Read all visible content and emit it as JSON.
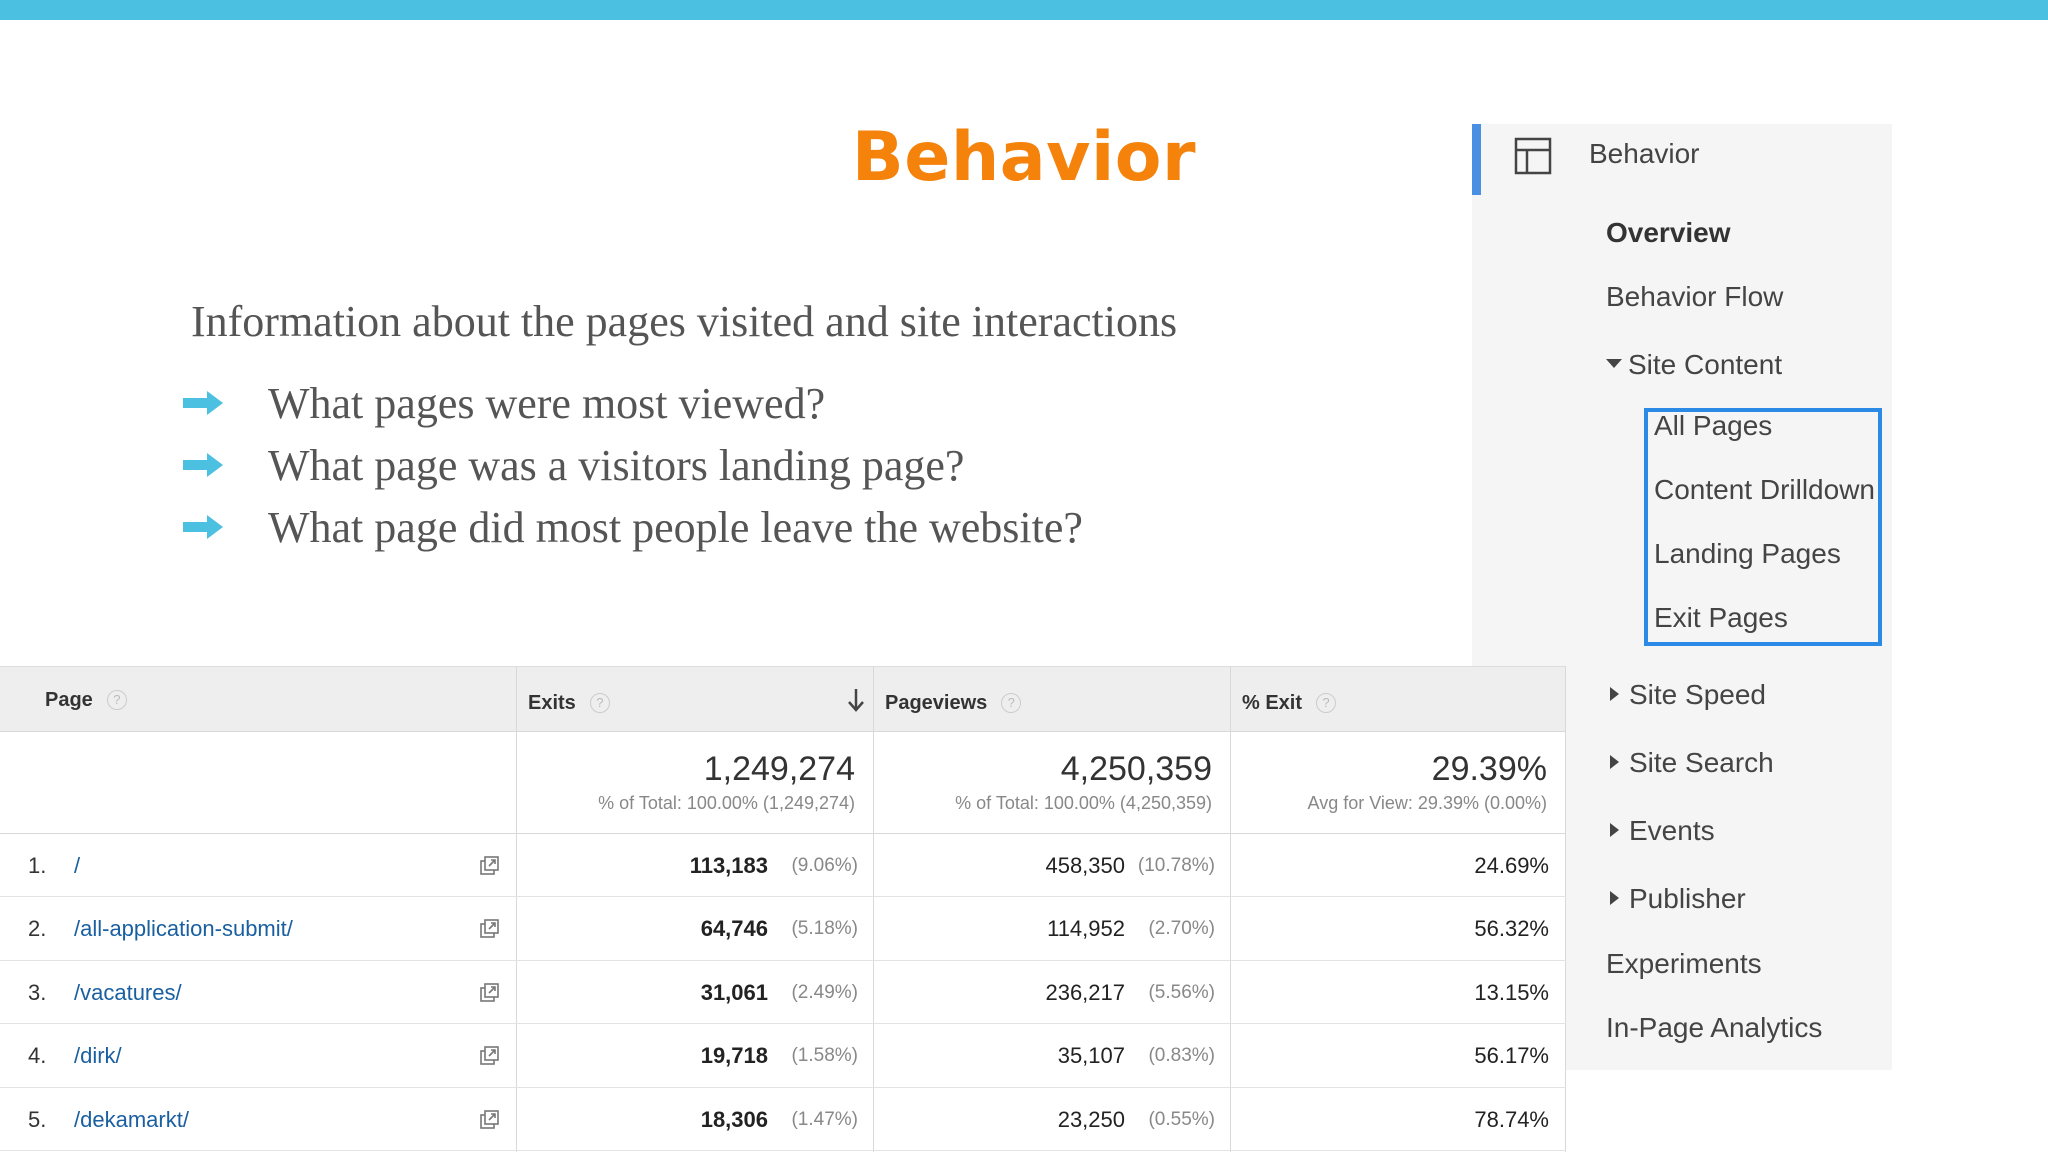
{
  "slide": {
    "title": "Behavior",
    "intro": "Information about the pages visited and site interactions",
    "bullets": [
      "What pages were most viewed?",
      "What page was a visitors landing page?",
      "What page did most people leave the website?"
    ]
  },
  "colors": {
    "top_bar": "#4bc0e1",
    "title": "#f5820b",
    "bullet_arrow": "#4bc0e1",
    "highlight": "#2a8ae6",
    "link": "#1a5fa0"
  },
  "sidebar": {
    "header": "Behavior",
    "header_icon": "layout-icon",
    "items": {
      "overview": "Overview",
      "behavior_flow": "Behavior Flow",
      "site_content": "Site Content",
      "all_pages": "All Pages",
      "content_drilldown": "Content Drilldown",
      "landing_pages": "Landing Pages",
      "exit_pages": "Exit Pages",
      "site_speed": "Site Speed",
      "site_search": "Site Search",
      "events": "Events",
      "publisher": "Publisher",
      "experiments": "Experiments",
      "in_page_analytics": "In-Page Analytics"
    }
  },
  "table": {
    "headers": {
      "page": "Page",
      "exits": "Exits",
      "pageviews": "Pageviews",
      "pct_exit": "% Exit",
      "help": "?"
    },
    "totals": {
      "exits": "1,249,274",
      "exits_sub": "% of Total: 100.00% (1,249,274)",
      "pageviews": "4,250,359",
      "pageviews_sub": "% of Total: 100.00% (4,250,359)",
      "pct_exit": "29.39%",
      "pct_exit_sub": "Avg for View: 29.39% (0.00%)"
    },
    "rows": [
      {
        "num": "1.",
        "page": "/",
        "exits": "113,183",
        "exits_pct": "(9.06%)",
        "pageviews": "458,350",
        "pageviews_pct": "(10.78%)",
        "pct_exit": "24.69%"
      },
      {
        "num": "2.",
        "page": "/all-application-submit/",
        "exits": "64,746",
        "exits_pct": "(5.18%)",
        "pageviews": "114,952",
        "pageviews_pct": "(2.70%)",
        "pct_exit": "56.32%"
      },
      {
        "num": "3.",
        "page": "/vacatures/",
        "exits": "31,061",
        "exits_pct": "(2.49%)",
        "pageviews": "236,217",
        "pageviews_pct": "(5.56%)",
        "pct_exit": "13.15%"
      },
      {
        "num": "4.",
        "page": "/dirk/",
        "exits": "19,718",
        "exits_pct": "(1.58%)",
        "pageviews": "35,107",
        "pageviews_pct": "(0.83%)",
        "pct_exit": "56.17%"
      },
      {
        "num": "5.",
        "page": "/dekamarkt/",
        "exits": "18,306",
        "exits_pct": "(1.47%)",
        "pageviews": "23,250",
        "pageviews_pct": "(0.55%)",
        "pct_exit": "78.74%"
      }
    ]
  }
}
